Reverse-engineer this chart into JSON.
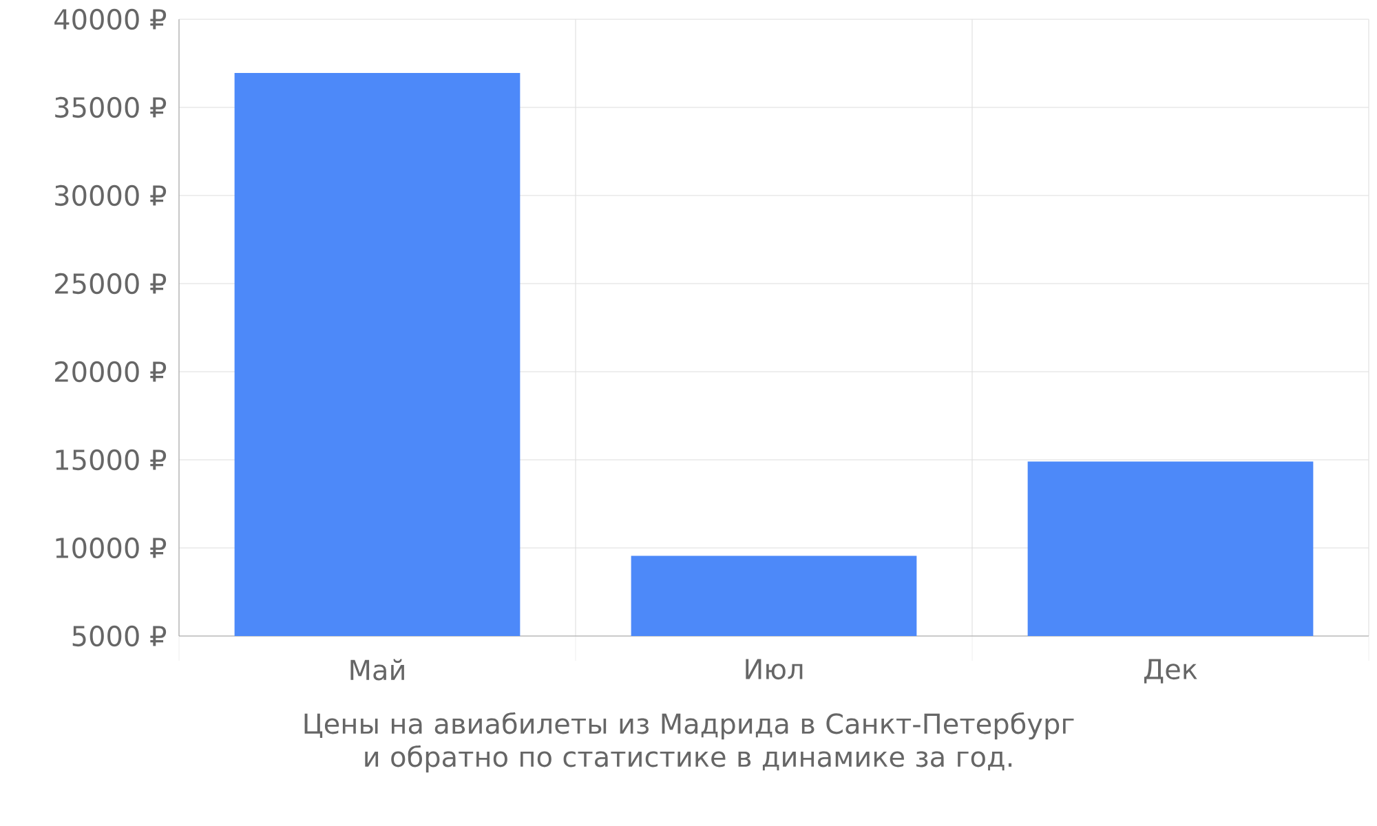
{
  "chart_data": {
    "type": "bar",
    "xlabel": "Цены на авиабилеты из Мадрида в Санкт-Петербург и обратно по статистике в динамике за год.",
    "categories": [
      "Май",
      "Июл",
      "Дек"
    ],
    "values": [
      36950,
      9550,
      14900
    ],
    "color": "#4d89f9",
    "ylim": [
      5000,
      40000
    ],
    "yticks": [
      {
        "value": 5000,
        "label": "5000 ₽"
      },
      {
        "value": 10000,
        "label": "10000 ₽"
      },
      {
        "value": 15000,
        "label": "15000 ₽"
      },
      {
        "value": 20000,
        "label": "20000 ₽"
      },
      {
        "value": 25000,
        "label": "25000 ₽"
      },
      {
        "value": 30000,
        "label": "30000 ₽"
      },
      {
        "value": 35000,
        "label": "35000 ₽"
      },
      {
        "value": 40000,
        "label": "40000 ₽"
      }
    ],
    "grid": true
  }
}
